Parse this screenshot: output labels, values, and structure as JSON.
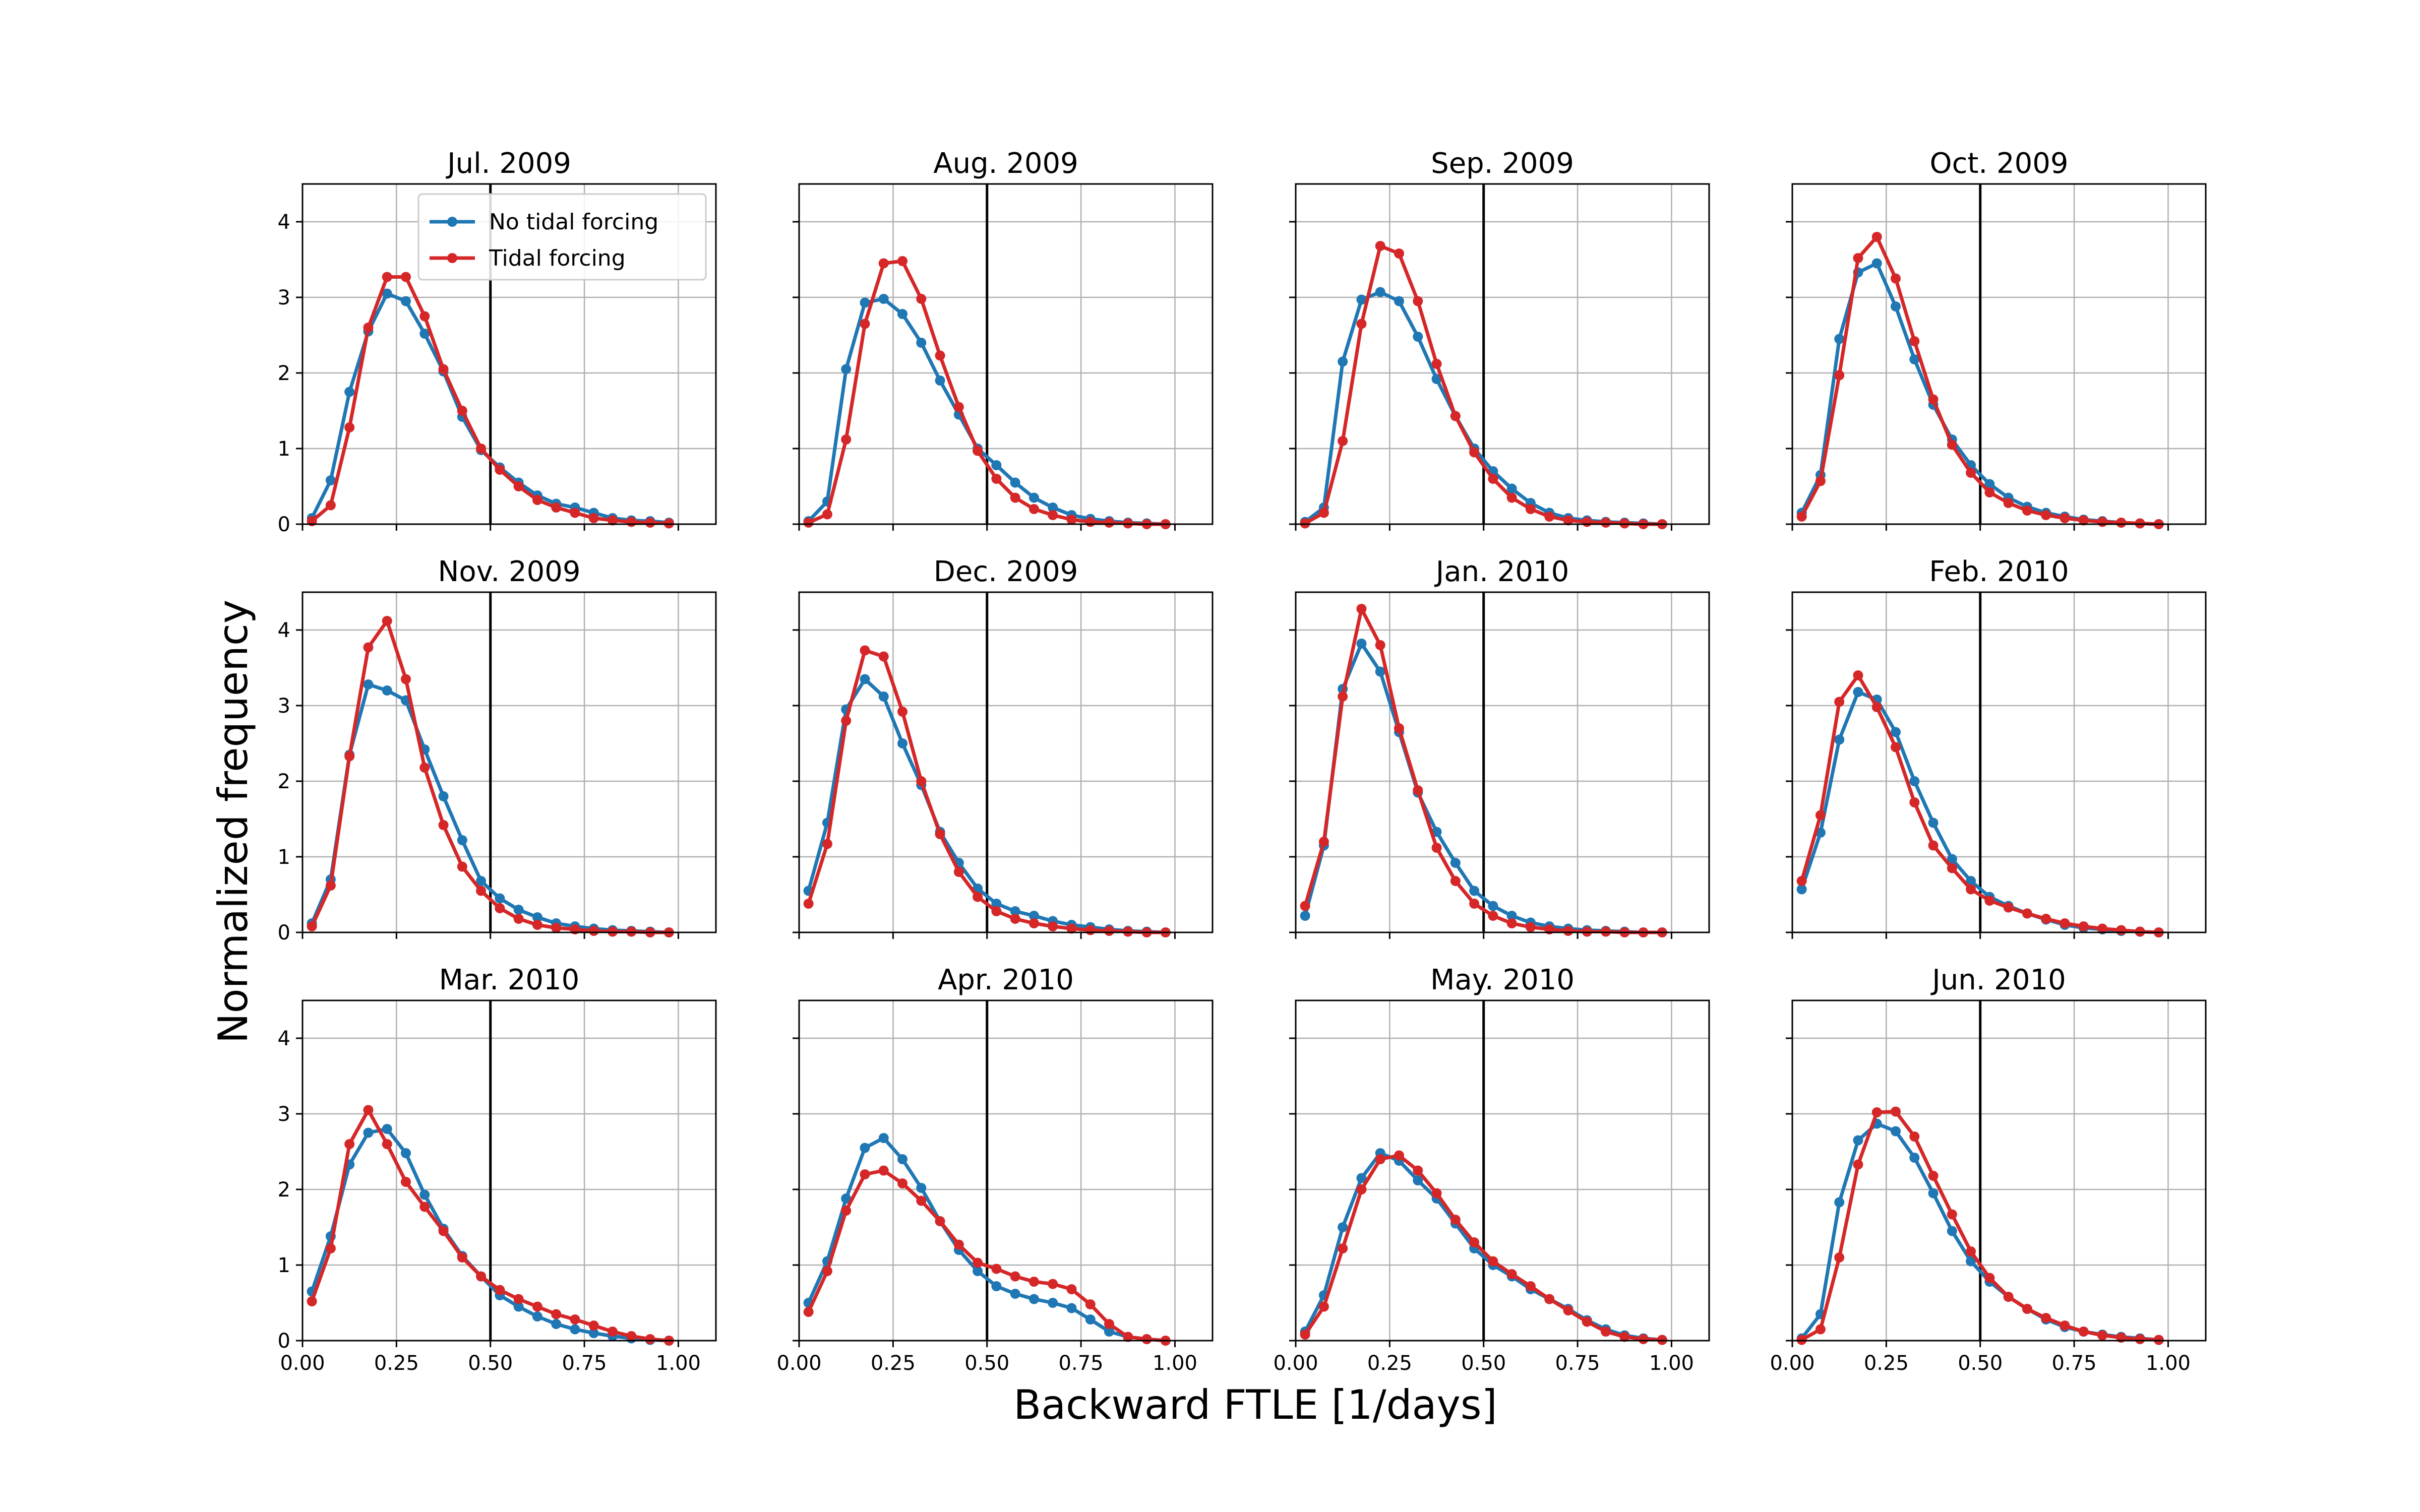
{
  "chart_data": {
    "type": "line",
    "ylabel": "Normalized frequency",
    "xlabel": "Backward FTLE [1/days]",
    "xlim": [
      0,
      1.1
    ],
    "ylim": [
      0,
      4.5
    ],
    "xticks": [
      0,
      0.25,
      0.5,
      0.75,
      1.0
    ],
    "xtick_labels": [
      "0.00",
      "0.25",
      "0.50",
      "0.75",
      "1.00"
    ],
    "yticks": [
      0,
      1,
      2,
      3,
      4
    ],
    "ytick_labels": [
      "0",
      "1",
      "2",
      "3",
      "4"
    ],
    "grid": true,
    "vline_x": 0.5,
    "layout": "3x4 grid of subplots, shared axes",
    "legend": {
      "placement": "top-right of first panel",
      "entries": [
        "No tidal forcing",
        "Tidal forcing"
      ]
    },
    "series_colors": {
      "No tidal forcing": "#1f77b4",
      "Tidal forcing": "#d62728"
    },
    "x": [
      0.025,
      0.075,
      0.125,
      0.175,
      0.225,
      0.275,
      0.325,
      0.375,
      0.425,
      0.475,
      0.525,
      0.575,
      0.625,
      0.675,
      0.725,
      0.775,
      0.825,
      0.875,
      0.925,
      0.975
    ],
    "panels": [
      {
        "title": "Jul. 2009",
        "series": [
          {
            "name": "No tidal forcing",
            "values": [
              0.08,
              0.58,
              1.75,
              2.55,
              3.05,
              2.95,
              2.52,
              2.02,
              1.42,
              0.98,
              0.75,
              0.55,
              0.38,
              0.27,
              0.22,
              0.15,
              0.08,
              0.05,
              0.04,
              0.02
            ]
          },
          {
            "name": "Tidal forcing",
            "values": [
              0.04,
              0.25,
              1.28,
              2.6,
              3.27,
              3.27,
              2.75,
              2.05,
              1.5,
              1.0,
              0.72,
              0.5,
              0.32,
              0.22,
              0.15,
              0.08,
              0.05,
              0.03,
              0.02,
              0.01
            ]
          }
        ]
      },
      {
        "title": "Aug. 2009",
        "series": [
          {
            "name": "No tidal forcing",
            "values": [
              0.04,
              0.3,
              2.05,
              2.93,
              2.98,
              2.78,
              2.4,
              1.9,
              1.45,
              1.0,
              0.78,
              0.55,
              0.35,
              0.22,
              0.12,
              0.07,
              0.04,
              0.02,
              0.01,
              0.0
            ]
          },
          {
            "name": "Tidal forcing",
            "values": [
              0.02,
              0.13,
              1.12,
              2.65,
              3.45,
              3.48,
              2.98,
              2.23,
              1.55,
              0.97,
              0.6,
              0.35,
              0.2,
              0.12,
              0.06,
              0.03,
              0.02,
              0.01,
              0.0,
              0.0
            ]
          }
        ]
      },
      {
        "title": "Sep. 2009",
        "series": [
          {
            "name": "No tidal forcing",
            "values": [
              0.03,
              0.22,
              2.15,
              2.97,
              3.07,
              2.95,
              2.48,
              1.92,
              1.43,
              1.0,
              0.7,
              0.47,
              0.28,
              0.15,
              0.08,
              0.05,
              0.03,
              0.02,
              0.01,
              0.0
            ]
          },
          {
            "name": "Tidal forcing",
            "values": [
              0.01,
              0.15,
              1.1,
              2.65,
              3.68,
              3.58,
              2.95,
              2.12,
              1.43,
              0.95,
              0.6,
              0.35,
              0.2,
              0.1,
              0.05,
              0.03,
              0.02,
              0.01,
              0.0,
              0.0
            ]
          }
        ]
      },
      {
        "title": "Oct. 2009",
        "series": [
          {
            "name": "No tidal forcing",
            "values": [
              0.15,
              0.65,
              2.45,
              3.33,
              3.45,
              2.88,
              2.18,
              1.58,
              1.12,
              0.78,
              0.53,
              0.35,
              0.23,
              0.15,
              0.1,
              0.06,
              0.04,
              0.02,
              0.01,
              0.0
            ]
          },
          {
            "name": "Tidal forcing",
            "values": [
              0.1,
              0.57,
              1.97,
              3.52,
              3.8,
              3.25,
              2.42,
              1.65,
              1.05,
              0.68,
              0.42,
              0.28,
              0.18,
              0.12,
              0.08,
              0.05,
              0.03,
              0.02,
              0.01,
              0.0
            ]
          }
        ]
      },
      {
        "title": "Nov. 2009",
        "series": [
          {
            "name": "No tidal forcing",
            "values": [
              0.12,
              0.7,
              2.35,
              3.28,
              3.2,
              3.07,
              2.42,
              1.8,
              1.22,
              0.68,
              0.45,
              0.3,
              0.2,
              0.12,
              0.08,
              0.05,
              0.03,
              0.02,
              0.01,
              0.0
            ]
          },
          {
            "name": "Tidal forcing",
            "values": [
              0.08,
              0.62,
              2.33,
              3.77,
              4.12,
              3.35,
              2.18,
              1.42,
              0.87,
              0.55,
              0.32,
              0.18,
              0.1,
              0.06,
              0.04,
              0.02,
              0.01,
              0.01,
              0.0,
              0.0
            ]
          }
        ]
      },
      {
        "title": "Dec. 2009",
        "series": [
          {
            "name": "No tidal forcing",
            "values": [
              0.55,
              1.45,
              2.95,
              3.35,
              3.12,
              2.5,
              1.95,
              1.33,
              0.92,
              0.58,
              0.38,
              0.28,
              0.22,
              0.15,
              0.1,
              0.07,
              0.04,
              0.02,
              0.01,
              0.0
            ]
          },
          {
            "name": "Tidal forcing",
            "values": [
              0.38,
              1.17,
              2.8,
              3.73,
              3.65,
              2.92,
              2.0,
              1.3,
              0.8,
              0.47,
              0.28,
              0.18,
              0.12,
              0.08,
              0.05,
              0.03,
              0.02,
              0.01,
              0.0,
              0.0
            ]
          }
        ]
      },
      {
        "title": "Jan. 2010",
        "series": [
          {
            "name": "No tidal forcing",
            "values": [
              0.22,
              1.15,
              3.22,
              3.82,
              3.45,
              2.65,
              1.85,
              1.33,
              0.92,
              0.55,
              0.35,
              0.22,
              0.13,
              0.08,
              0.05,
              0.03,
              0.02,
              0.01,
              0.0,
              0.0
            ]
          },
          {
            "name": "Tidal forcing",
            "values": [
              0.35,
              1.2,
              3.12,
              4.28,
              3.8,
              2.7,
              1.88,
              1.12,
              0.68,
              0.38,
              0.22,
              0.12,
              0.07,
              0.04,
              0.02,
              0.01,
              0.01,
              0.0,
              0.0,
              0.0
            ]
          }
        ]
      },
      {
        "title": "Feb. 2010",
        "series": [
          {
            "name": "No tidal forcing",
            "values": [
              0.57,
              1.32,
              2.55,
              3.18,
              3.08,
              2.65,
              2.0,
              1.45,
              0.97,
              0.68,
              0.47,
              0.35,
              0.25,
              0.17,
              0.1,
              0.06,
              0.04,
              0.02,
              0.01,
              0.0
            ]
          },
          {
            "name": "Tidal forcing",
            "values": [
              0.68,
              1.55,
              3.05,
              3.4,
              2.98,
              2.45,
              1.72,
              1.15,
              0.85,
              0.57,
              0.42,
              0.33,
              0.25,
              0.18,
              0.12,
              0.08,
              0.05,
              0.03,
              0.01,
              0.0
            ]
          }
        ]
      },
      {
        "title": "Mar. 2010",
        "series": [
          {
            "name": "No tidal forcing",
            "values": [
              0.65,
              1.38,
              2.33,
              2.75,
              2.8,
              2.48,
              1.93,
              1.48,
              1.12,
              0.85,
              0.6,
              0.45,
              0.32,
              0.22,
              0.15,
              0.1,
              0.06,
              0.03,
              0.01,
              0.0
            ]
          },
          {
            "name": "Tidal forcing",
            "values": [
              0.52,
              1.22,
              2.6,
              3.05,
              2.6,
              2.1,
              1.77,
              1.45,
              1.1,
              0.85,
              0.67,
              0.55,
              0.45,
              0.35,
              0.28,
              0.2,
              0.12,
              0.06,
              0.02,
              0.0
            ]
          }
        ]
      },
      {
        "title": "Apr. 2010",
        "series": [
          {
            "name": "No tidal forcing",
            "values": [
              0.5,
              1.05,
              1.88,
              2.55,
              2.68,
              2.4,
              2.02,
              1.58,
              1.2,
              0.92,
              0.72,
              0.62,
              0.55,
              0.5,
              0.43,
              0.28,
              0.12,
              0.05,
              0.02,
              0.0
            ]
          },
          {
            "name": "Tidal forcing",
            "values": [
              0.38,
              0.92,
              1.72,
              2.2,
              2.25,
              2.08,
              1.85,
              1.58,
              1.27,
              1.03,
              0.95,
              0.85,
              0.78,
              0.75,
              0.68,
              0.48,
              0.22,
              0.05,
              0.02,
              0.0
            ]
          }
        ]
      },
      {
        "title": "May. 2010",
        "series": [
          {
            "name": "No tidal forcing",
            "values": [
              0.12,
              0.6,
              1.5,
              2.15,
              2.48,
              2.38,
              2.12,
              1.88,
              1.55,
              1.22,
              1.0,
              0.85,
              0.68,
              0.55,
              0.42,
              0.27,
              0.15,
              0.07,
              0.03,
              0.01
            ]
          },
          {
            "name": "Tidal forcing",
            "values": [
              0.08,
              0.45,
              1.22,
              2.0,
              2.4,
              2.45,
              2.25,
              1.95,
              1.6,
              1.3,
              1.05,
              0.88,
              0.72,
              0.55,
              0.4,
              0.25,
              0.12,
              0.05,
              0.02,
              0.01
            ]
          }
        ]
      },
      {
        "title": "Jun. 2010",
        "series": [
          {
            "name": "No tidal forcing",
            "values": [
              0.03,
              0.35,
              1.83,
              2.65,
              2.87,
              2.77,
              2.42,
              1.95,
              1.45,
              1.05,
              0.78,
              0.58,
              0.42,
              0.28,
              0.18,
              0.12,
              0.08,
              0.05,
              0.03,
              0.01
            ]
          },
          {
            "name": "Tidal forcing",
            "values": [
              0.01,
              0.15,
              1.1,
              2.33,
              3.02,
              3.03,
              2.7,
              2.18,
              1.67,
              1.18,
              0.83,
              0.58,
              0.42,
              0.3,
              0.2,
              0.12,
              0.07,
              0.04,
              0.02,
              0.01
            ]
          }
        ]
      }
    ]
  }
}
